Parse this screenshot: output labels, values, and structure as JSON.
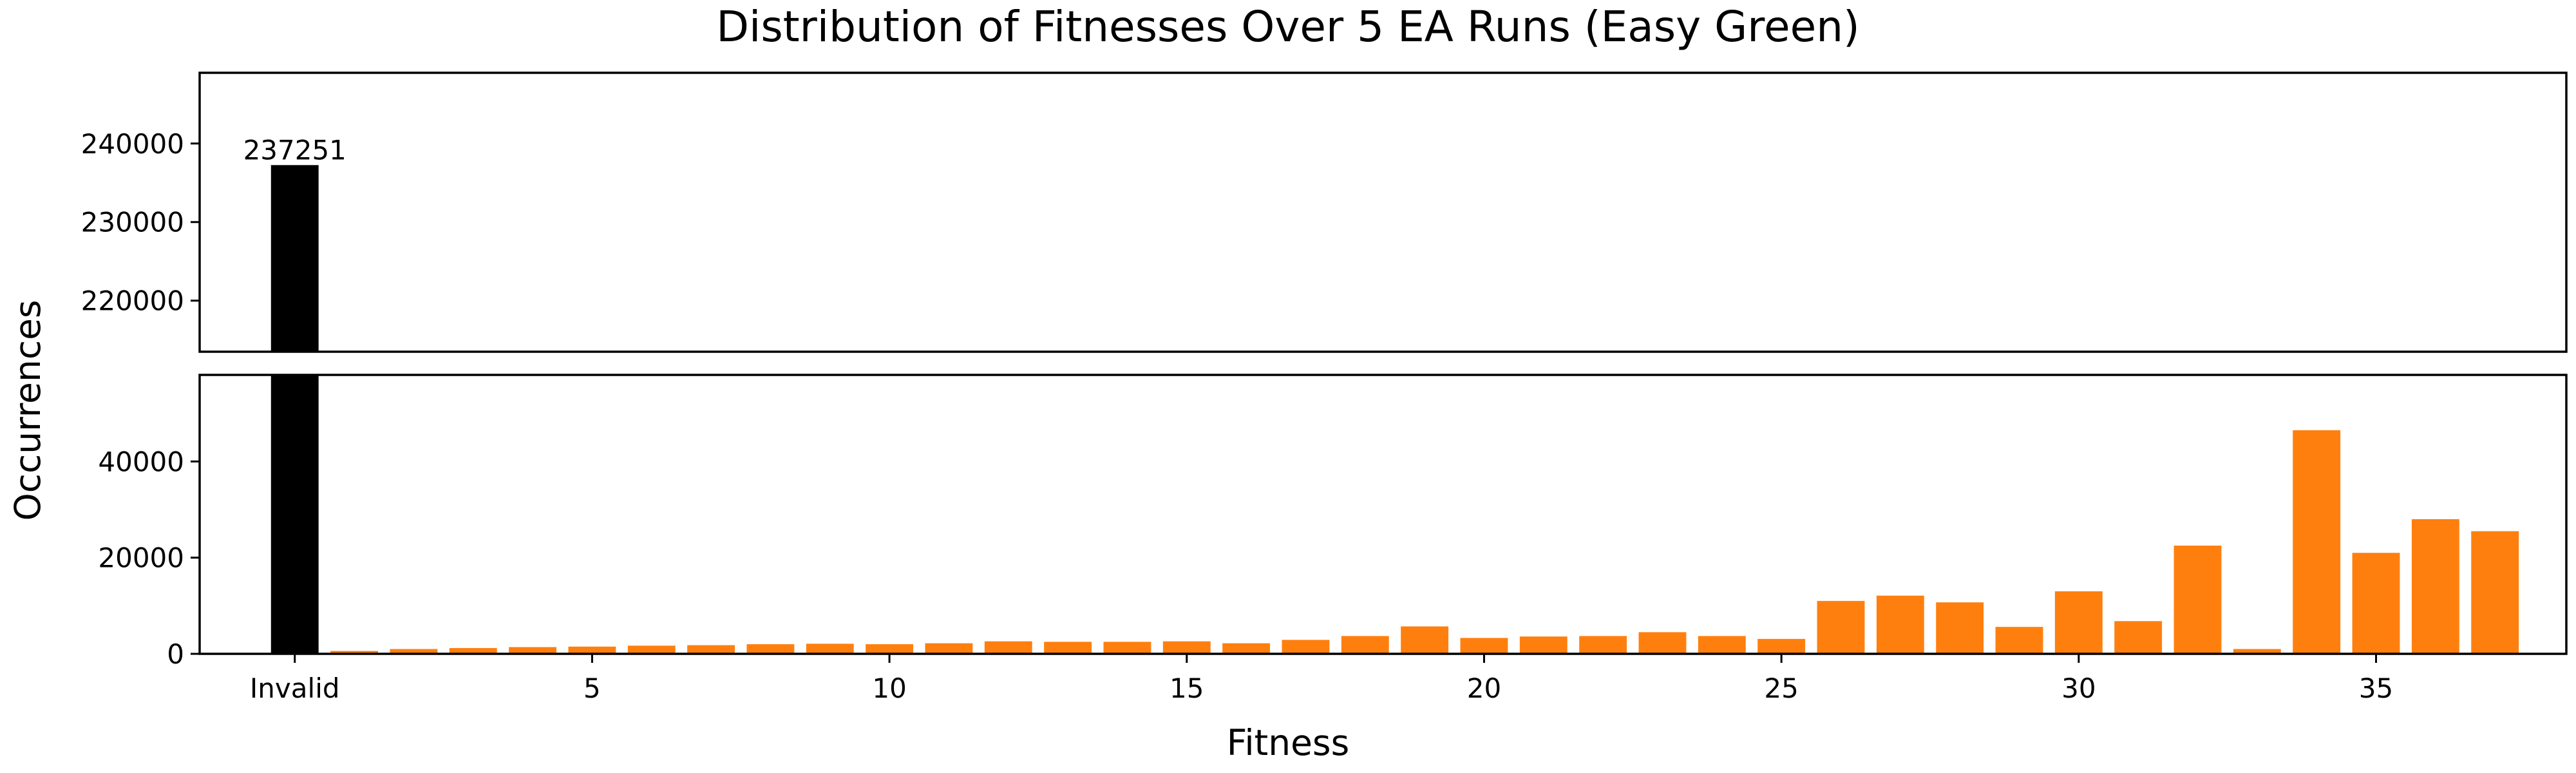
{
  "chart_data": {
    "type": "bar",
    "title": "Distribution of Fitnesses Over 5 EA Runs (Easy Green)",
    "xlabel": "Fitness",
    "ylabel": "Occurrences",
    "broken_axis": true,
    "grid": false,
    "legend": "none",
    "colors": {
      "invalid": "#000000",
      "valid": "#ff7f0e"
    },
    "xlim": [
      -1.6,
      38.2
    ],
    "x_ticks": [
      {
        "value": 0,
        "label": "Invalid"
      },
      {
        "value": 5,
        "label": "5"
      },
      {
        "value": 10,
        "label": "10"
      },
      {
        "value": 15,
        "label": "15"
      },
      {
        "value": 20,
        "label": "20"
      },
      {
        "value": 25,
        "label": "25"
      },
      {
        "value": 30,
        "label": "30"
      },
      {
        "value": 35,
        "label": "35"
      }
    ],
    "panels": {
      "upper": {
        "ylim": [
          213500,
          249000
        ],
        "y_ticks": [
          {
            "value": 220000,
            "label": "220000"
          },
          {
            "value": 230000,
            "label": "230000"
          },
          {
            "value": 240000,
            "label": "240000"
          }
        ]
      },
      "lower": {
        "ylim": [
          0,
          58000
        ],
        "y_ticks": [
          {
            "value": 0,
            "label": "0"
          },
          {
            "value": 20000,
            "label": "20000"
          },
          {
            "value": 40000,
            "label": "40000"
          }
        ]
      }
    },
    "bars": [
      {
        "x": 0,
        "category": "Invalid",
        "value": 237251,
        "label": "237251",
        "color": "#000000"
      },
      {
        "x": 1,
        "category": "1",
        "value": 600,
        "color": "#ff7f0e"
      },
      {
        "x": 2,
        "category": "2",
        "value": 1000,
        "color": "#ff7f0e"
      },
      {
        "x": 3,
        "category": "3",
        "value": 1200,
        "color": "#ff7f0e"
      },
      {
        "x": 4,
        "category": "4",
        "value": 1400,
        "color": "#ff7f0e"
      },
      {
        "x": 5,
        "category": "5",
        "value": 1500,
        "color": "#ff7f0e"
      },
      {
        "x": 6,
        "category": "6",
        "value": 1700,
        "color": "#ff7f0e"
      },
      {
        "x": 7,
        "category": "7",
        "value": 1800,
        "color": "#ff7f0e"
      },
      {
        "x": 8,
        "category": "8",
        "value": 2000,
        "color": "#ff7f0e"
      },
      {
        "x": 9,
        "category": "9",
        "value": 2100,
        "color": "#ff7f0e"
      },
      {
        "x": 10,
        "category": "10",
        "value": 2000,
        "color": "#ff7f0e"
      },
      {
        "x": 11,
        "category": "11",
        "value": 2200,
        "color": "#ff7f0e"
      },
      {
        "x": 12,
        "category": "12",
        "value": 2600,
        "color": "#ff7f0e"
      },
      {
        "x": 13,
        "category": "13",
        "value": 2500,
        "color": "#ff7f0e"
      },
      {
        "x": 14,
        "category": "14",
        "value": 2500,
        "color": "#ff7f0e"
      },
      {
        "x": 15,
        "category": "15",
        "value": 2600,
        "color": "#ff7f0e"
      },
      {
        "x": 16,
        "category": "16",
        "value": 2200,
        "color": "#ff7f0e"
      },
      {
        "x": 17,
        "category": "17",
        "value": 2900,
        "color": "#ff7f0e"
      },
      {
        "x": 18,
        "category": "18",
        "value": 3700,
        "color": "#ff7f0e"
      },
      {
        "x": 19,
        "category": "19",
        "value": 5700,
        "color": "#ff7f0e"
      },
      {
        "x": 20,
        "category": "20",
        "value": 3300,
        "color": "#ff7f0e"
      },
      {
        "x": 21,
        "category": "21",
        "value": 3600,
        "color": "#ff7f0e"
      },
      {
        "x": 22,
        "category": "22",
        "value": 3700,
        "color": "#ff7f0e"
      },
      {
        "x": 23,
        "category": "23",
        "value": 4500,
        "color": "#ff7f0e"
      },
      {
        "x": 24,
        "category": "24",
        "value": 3700,
        "color": "#ff7f0e"
      },
      {
        "x": 25,
        "category": "25",
        "value": 3100,
        "color": "#ff7f0e"
      },
      {
        "x": 26,
        "category": "26",
        "value": 11000,
        "color": "#ff7f0e"
      },
      {
        "x": 27,
        "category": "27",
        "value": 12100,
        "color": "#ff7f0e"
      },
      {
        "x": 28,
        "category": "28",
        "value": 10700,
        "color": "#ff7f0e"
      },
      {
        "x": 29,
        "category": "29",
        "value": 5600,
        "color": "#ff7f0e"
      },
      {
        "x": 30,
        "category": "30",
        "value": 13000,
        "color": "#ff7f0e"
      },
      {
        "x": 31,
        "category": "31",
        "value": 6800,
        "color": "#ff7f0e"
      },
      {
        "x": 32,
        "category": "32",
        "value": 22500,
        "color": "#ff7f0e"
      },
      {
        "x": 33,
        "category": "33",
        "value": 1000,
        "color": "#ff7f0e"
      },
      {
        "x": 34,
        "category": "34",
        "value": 46500,
        "color": "#ff7f0e"
      },
      {
        "x": 35,
        "category": "35",
        "value": 21000,
        "color": "#ff7f0e"
      },
      {
        "x": 36,
        "category": "36",
        "value": 28000,
        "color": "#ff7f0e"
      },
      {
        "x": 37,
        "category": "37",
        "value": 25500,
        "color": "#ff7f0e"
      }
    ]
  }
}
